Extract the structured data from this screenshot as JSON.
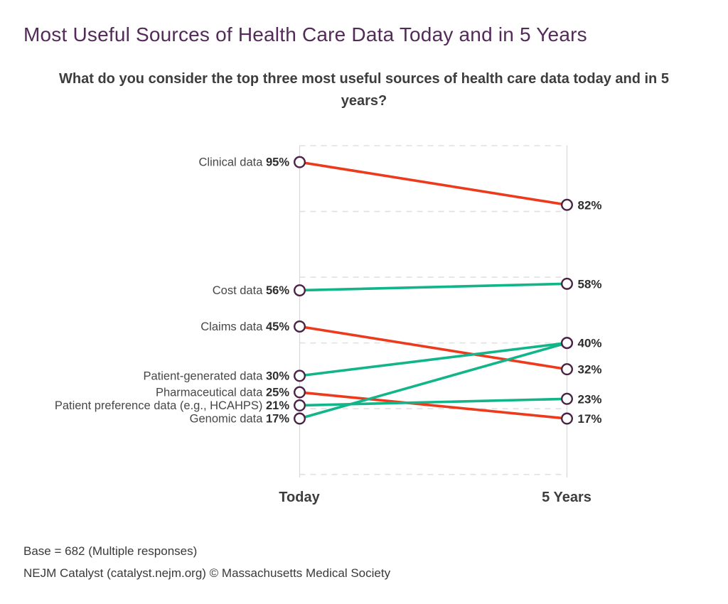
{
  "header": {
    "title": "Most Useful Sources of Health Care Data Today and in 5 Years",
    "subtitle": "What do you consider the top three most useful sources of health care data today and in 5 years?"
  },
  "chart_data": {
    "type": "line",
    "subtype": "slopegraph",
    "columns": [
      "Today",
      "5 Years"
    ],
    "series": [
      {
        "name": "Clinical data",
        "values": [
          95,
          82
        ],
        "trend": "decrease"
      },
      {
        "name": "Cost data",
        "values": [
          56,
          58
        ],
        "trend": "increase"
      },
      {
        "name": "Claims data",
        "values": [
          45,
          32
        ],
        "trend": "decrease"
      },
      {
        "name": "Patient-generated data",
        "values": [
          30,
          40
        ],
        "trend": "increase"
      },
      {
        "name": "Pharmaceutical data",
        "values": [
          25,
          17
        ],
        "trend": "decrease"
      },
      {
        "name": "Patient preference data (e.g., HCAHPS)",
        "values": [
          21,
          23
        ],
        "trend": "increase"
      },
      {
        "name": "Genomic data",
        "values": [
          17,
          40
        ],
        "trend": "increase"
      }
    ],
    "value_suffix": "%",
    "ylim": [
      0,
      100
    ],
    "gridlines": [
      0,
      20,
      40,
      60,
      80,
      100
    ],
    "grid": "dashed-horizontal",
    "legend": "none",
    "colors": {
      "decrease": "#ee3a1c",
      "increase": "#12b589",
      "marker_fill": "#ffffff",
      "marker_stroke": "#4a2347",
      "title": "#542a5a",
      "text": "#3d3d3d",
      "gridline": "#e0e0e0",
      "axis_line": "#d8d8d8"
    }
  },
  "footer": {
    "base_note": "Base = 682 (Multiple responses)",
    "attribution": "NEJM Catalyst (catalyst.nejm.org) © Massachusetts Medical Society"
  }
}
